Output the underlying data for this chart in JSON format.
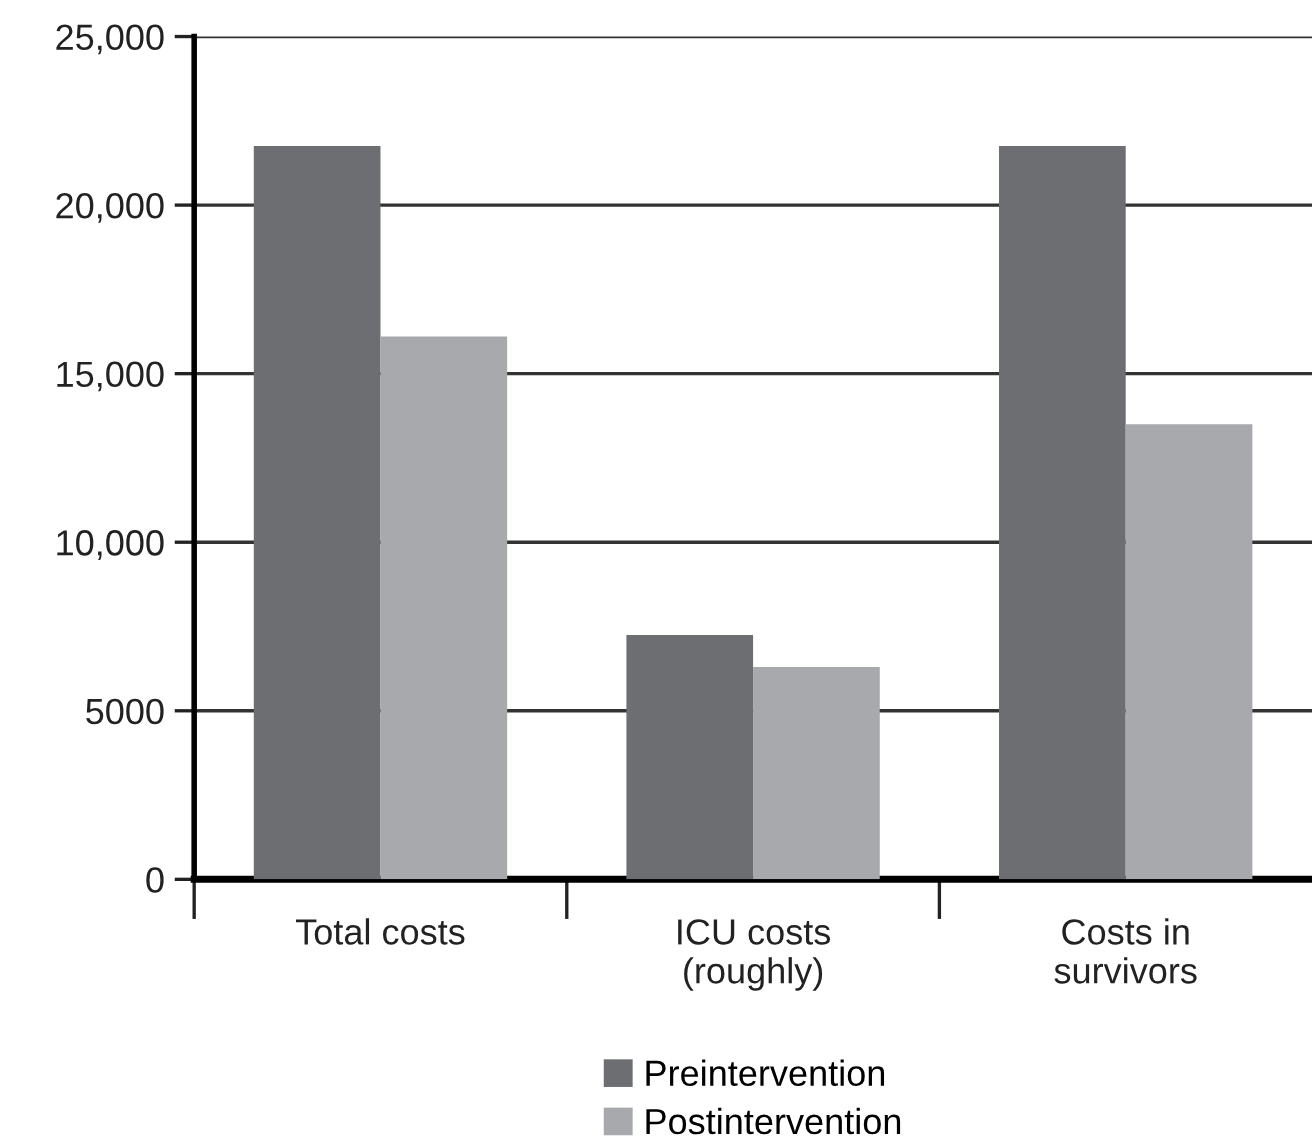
{
  "chart_data": {
    "type": "bar",
    "categories": [
      "Total costs",
      "ICU costs\n(roughly)",
      "Costs in\nsurvivors"
    ],
    "series": [
      {
        "name": "Preintervention",
        "color": "#6d6e72",
        "values": [
          21750,
          7250,
          21750
        ]
      },
      {
        "name": "Postintervention",
        "color": "#a8a9ac",
        "values": [
          16100,
          6300,
          13500
        ]
      }
    ],
    "ylim": [
      0,
      25000
    ],
    "yticks": [
      0,
      {
        "value": 5000,
        "label": "5000"
      },
      {
        "value": 10000,
        "label": "10,000"
      },
      {
        "value": 15000,
        "label": "15,000"
      },
      {
        "value": 20000,
        "label": "20,000"
      },
      {
        "value": 25000,
        "label": "25,000"
      }
    ],
    "grid": "y",
    "legend": "bottom"
  }
}
